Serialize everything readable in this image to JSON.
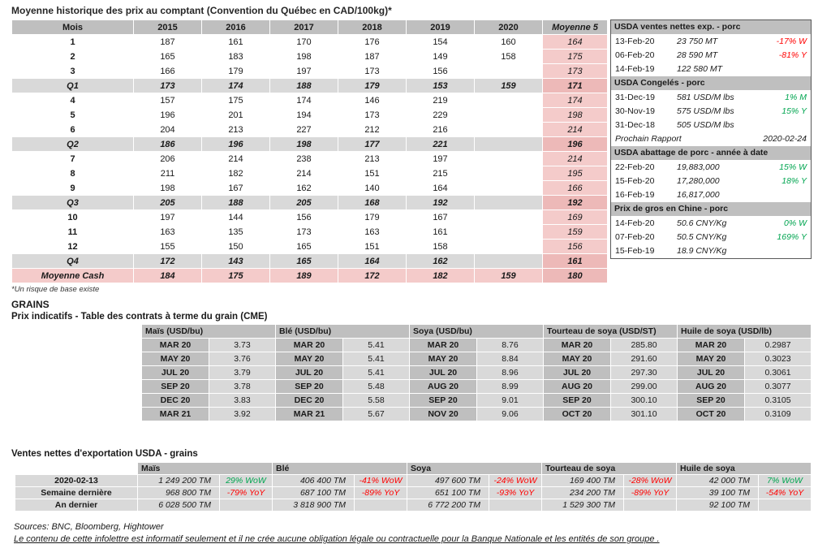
{
  "colors": {
    "header_gray": "#BFBFBF",
    "row_gray": "#D9D9D9",
    "pink": "#F4CBCA",
    "pink_dark": "#EDB9B8",
    "red": "#FF0000",
    "green": "#00A550"
  },
  "cash_table": {
    "title": "Moyenne historique des prix au comptant (Convention du Québec en CAD/100kg)*",
    "footnote": "*Un risque de base existe",
    "headers": [
      "Mois",
      "2015",
      "2016",
      "2017",
      "2018",
      "2019",
      "2020",
      "Moyenne 5"
    ],
    "rows": [
      {
        "label": "1",
        "type": "month",
        "values": [
          "187",
          "161",
          "170",
          "176",
          "154",
          "160"
        ],
        "avg": "164"
      },
      {
        "label": "2",
        "type": "month",
        "values": [
          "165",
          "183",
          "198",
          "187",
          "149",
          "158"
        ],
        "avg": "175"
      },
      {
        "label": "3",
        "type": "month",
        "values": [
          "166",
          "179",
          "197",
          "173",
          "156",
          ""
        ],
        "avg": "173"
      },
      {
        "label": "Q1",
        "type": "quarter",
        "values": [
          "173",
          "174",
          "188",
          "179",
          "153",
          "159"
        ],
        "avg": "171"
      },
      {
        "label": "4",
        "type": "month",
        "values": [
          "157",
          "175",
          "174",
          "146",
          "219",
          ""
        ],
        "avg": "174"
      },
      {
        "label": "5",
        "type": "month",
        "values": [
          "196",
          "201",
          "194",
          "173",
          "229",
          ""
        ],
        "avg": "198"
      },
      {
        "label": "6",
        "type": "month",
        "values": [
          "204",
          "213",
          "227",
          "212",
          "216",
          ""
        ],
        "avg": "214"
      },
      {
        "label": "Q2",
        "type": "quarter",
        "values": [
          "186",
          "196",
          "198",
          "177",
          "221",
          ""
        ],
        "avg": "196"
      },
      {
        "label": "7",
        "type": "month",
        "values": [
          "206",
          "214",
          "238",
          "213",
          "197",
          ""
        ],
        "avg": "214"
      },
      {
        "label": "8",
        "type": "month",
        "values": [
          "211",
          "182",
          "214",
          "151",
          "215",
          ""
        ],
        "avg": "195"
      },
      {
        "label": "9",
        "type": "month",
        "values": [
          "198",
          "167",
          "162",
          "140",
          "164",
          ""
        ],
        "avg": "166"
      },
      {
        "label": "Q3",
        "type": "quarter",
        "values": [
          "205",
          "188",
          "205",
          "168",
          "192",
          ""
        ],
        "avg": "192"
      },
      {
        "label": "10",
        "type": "month",
        "values": [
          "197",
          "144",
          "156",
          "179",
          "167",
          ""
        ],
        "avg": "169"
      },
      {
        "label": "11",
        "type": "month",
        "values": [
          "163",
          "135",
          "173",
          "163",
          "161",
          ""
        ],
        "avg": "159"
      },
      {
        "label": "12",
        "type": "month",
        "values": [
          "155",
          "150",
          "165",
          "151",
          "158",
          ""
        ],
        "avg": "156"
      },
      {
        "label": "Q4",
        "type": "quarter",
        "values": [
          "172",
          "143",
          "165",
          "164",
          "162",
          ""
        ],
        "avg": "161"
      },
      {
        "label": "Moyenne Cash",
        "type": "cash",
        "values": [
          "184",
          "175",
          "189",
          "172",
          "182",
          "159"
        ],
        "avg": "180"
      }
    ]
  },
  "usda_panel": {
    "blocks": [
      {
        "type": "section",
        "title": "USDA ventes nettes exp. - porc",
        "rows": [
          {
            "date": "13-Feb-20",
            "value": "23 750  MT",
            "change": "-17% W",
            "change_color": "red"
          },
          {
            "date": "06-Feb-20",
            "value": "28 590  MT",
            "change": "-81% Y",
            "change_color": "red"
          },
          {
            "date": "14-Feb-19",
            "value": "122 580  MT",
            "change": "",
            "change_color": ""
          }
        ]
      },
      {
        "type": "section",
        "title": "USDA Congelés - porc",
        "rows": [
          {
            "date": "31-Dec-19",
            "value": "581 USD/M lbs",
            "change": "1% M",
            "change_color": "green"
          },
          {
            "date": "30-Nov-19",
            "value": "575 USD/M lbs",
            "change": "15% Y",
            "change_color": "green"
          },
          {
            "date": "31-Dec-18",
            "value": "505 USD/M lbs",
            "change": "",
            "change_color": ""
          }
        ]
      },
      {
        "type": "report",
        "label": "Prochain Rapport",
        "value": "2020-02-24"
      },
      {
        "type": "section",
        "title": "USDA abattage de porc - année à date",
        "rows": [
          {
            "date": "22-Feb-20",
            "value": "19,883,000",
            "change": "15% W",
            "change_color": "green"
          },
          {
            "date": "15-Feb-20",
            "value": "17,280,000",
            "change": "18% Y",
            "change_color": "green"
          },
          {
            "date": "16-Feb-19",
            "value": "16,817,000",
            "change": "",
            "change_color": ""
          }
        ]
      },
      {
        "type": "section",
        "title": "Prix de gros en Chine - porc",
        "rows": [
          {
            "date": "14-Feb-20",
            "value": "50.6 CNY/Kg",
            "change": "0% W",
            "change_color": "green"
          },
          {
            "date": "07-Feb-20",
            "value": "50.5 CNY/Kg",
            "change": "169% Y",
            "change_color": "green"
          },
          {
            "date": "15-Feb-19",
            "value": "18.9 CNY/Kg",
            "change": "",
            "change_color": ""
          }
        ]
      }
    ]
  },
  "futures": {
    "section_title": "GRAINS",
    "title": "Prix indicatifs - Table des contrats à terme du grain (CME)",
    "groups": [
      {
        "header": "Maïs (USD/bu)",
        "rows": [
          [
            "MAR 20",
            "3.73"
          ],
          [
            "MAY 20",
            "3.76"
          ],
          [
            "JUL 20",
            "3.79"
          ],
          [
            "SEP 20",
            "3.78"
          ],
          [
            "DEC 20",
            "3.83"
          ],
          [
            "MAR 21",
            "3.92"
          ]
        ]
      },
      {
        "header": "Blé (USD/bu)",
        "rows": [
          [
            "MAR 20",
            "5.41"
          ],
          [
            "MAY 20",
            "5.41"
          ],
          [
            "JUL 20",
            "5.41"
          ],
          [
            "SEP 20",
            "5.48"
          ],
          [
            "DEC 20",
            "5.58"
          ],
          [
            "MAR 21",
            "5.67"
          ]
        ]
      },
      {
        "header": "Soya (USD/bu)",
        "rows": [
          [
            "MAR 20",
            "8.76"
          ],
          [
            "MAY 20",
            "8.84"
          ],
          [
            "JUL 20",
            "8.96"
          ],
          [
            "AUG 20",
            "8.99"
          ],
          [
            "SEP 20",
            "9.01"
          ],
          [
            "NOV 20",
            "9.06"
          ]
        ]
      },
      {
        "header": "Tourteau de soya (USD/ST)",
        "rows": [
          [
            "MAR 20",
            "285.80"
          ],
          [
            "MAY 20",
            "291.60"
          ],
          [
            "JUL 20",
            "297.30"
          ],
          [
            "AUG 20",
            "299.00"
          ],
          [
            "SEP 20",
            "300.10"
          ],
          [
            "OCT 20",
            "301.10"
          ]
        ]
      },
      {
        "header": "Huile de soya (USD/lb)",
        "rows": [
          [
            "MAR 20",
            "0.2987"
          ],
          [
            "MAY 20",
            "0.3023"
          ],
          [
            "JUL 20",
            "0.3061"
          ],
          [
            "AUG 20",
            "0.3077"
          ],
          [
            "SEP 20",
            "0.3105"
          ],
          [
            "OCT 20",
            "0.3109"
          ]
        ]
      }
    ]
  },
  "exports": {
    "title": "Ventes nettes d'exportation USDA - grains",
    "commodities": [
      "Maïs",
      "Blé",
      "Soya",
      "Tourteau de soya",
      "Huile de soya"
    ],
    "rows": [
      {
        "label": "2020-02-13",
        "cells": [
          {
            "value": "1 249 200 TM",
            "change": "29% WoW",
            "change_color": "green"
          },
          {
            "value": "406 400 TM",
            "change": "-41% WoW",
            "change_color": "red"
          },
          {
            "value": "497 600 TM",
            "change": "-24% WoW",
            "change_color": "red"
          },
          {
            "value": "169 400 TM",
            "change": "-28% WoW",
            "change_color": "red"
          },
          {
            "value": "42 000 TM",
            "change": "7% WoW",
            "change_color": "green"
          }
        ]
      },
      {
        "label": "Semaine dernière",
        "cells": [
          {
            "value": "968 800 TM",
            "change": "-79% YoY",
            "change_color": "red"
          },
          {
            "value": "687 100 TM",
            "change": "-89% YoY",
            "change_color": "red"
          },
          {
            "value": "651 100 TM",
            "change": "-93% YoY",
            "change_color": "red"
          },
          {
            "value": "234 200 TM",
            "change": "-89% YoY",
            "change_color": "red"
          },
          {
            "value": "39 100 TM",
            "change": "-54% YoY",
            "change_color": "red"
          }
        ]
      },
      {
        "label": "An dernier",
        "cells": [
          {
            "value": "6 028 500 TM",
            "change": "",
            "change_color": ""
          },
          {
            "value": "3 818 900 TM",
            "change": "",
            "change_color": ""
          },
          {
            "value": "6 772 200 TM",
            "change": "",
            "change_color": ""
          },
          {
            "value": "1 529 300 TM",
            "change": "",
            "change_color": ""
          },
          {
            "value": "92 100 TM",
            "change": "",
            "change_color": ""
          }
        ]
      }
    ]
  },
  "footer": {
    "sources": "Sources: BNC, Bloomberg, Hightower",
    "disclaimer": "Le contenu de cette infolettre est informatif seulement et il ne crée aucune obligation légale ou contractuelle pour la Banque Nationale et les entités de son groupe ."
  }
}
